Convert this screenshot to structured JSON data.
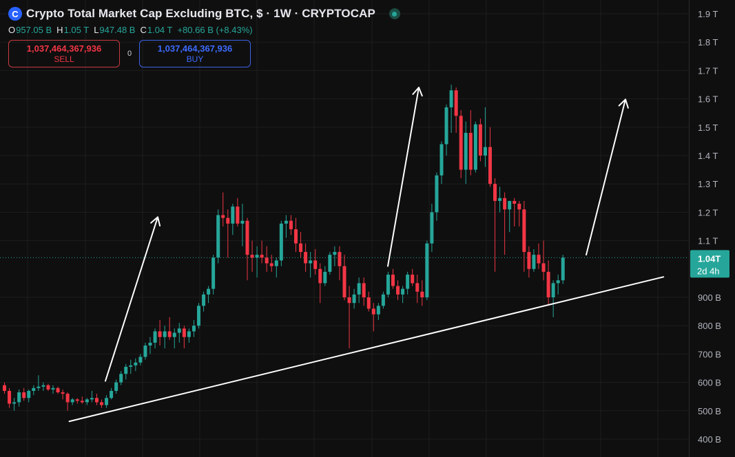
{
  "header": {
    "title": "Crypto Total Market Cap Excluding BTC, $ · 1W · CRYPTOCAP",
    "logo_icon": "coin-logo-icon",
    "status_icon": "market-open-dot-icon",
    "ohlc": {
      "open_label": "O",
      "open": "957.05 B",
      "high_label": "H",
      "high": "1.05 T",
      "low_label": "L",
      "low": "947.48 B",
      "close_label": "C",
      "close": "1.04 T",
      "change": "+80.66 B (+8.43%)"
    }
  },
  "trade": {
    "sell_price": "1,037,464,367,936",
    "sell_label": "SELL",
    "spread": "0",
    "buy_price": "1,037,464,367,936",
    "buy_label": "BUY"
  },
  "colors": {
    "background": "#0f0f0f",
    "up": "#26a69a",
    "down": "#f23645",
    "grid": "#1e1e1e",
    "annotation": "#ffffff"
  },
  "price_badge": {
    "price": "1.04T",
    "countdown": "2d 4h",
    "value": 1.04
  },
  "chart_data": {
    "type": "candlestick",
    "ylabels": [
      {
        "v": 1.9,
        "t": "1.9 T"
      },
      {
        "v": 1.8,
        "t": "1.8 T"
      },
      {
        "v": 1.7,
        "t": "1.7 T"
      },
      {
        "v": 1.6,
        "t": "1.6 T"
      },
      {
        "v": 1.5,
        "t": "1.5 T"
      },
      {
        "v": 1.4,
        "t": "1.4 T"
      },
      {
        "v": 1.3,
        "t": "1.3 T"
      },
      {
        "v": 1.2,
        "t": "1.2 T"
      },
      {
        "v": 1.1,
        "t": "1.1 T"
      },
      {
        "v": 0.9,
        "t": "900 B"
      },
      {
        "v": 0.8,
        "t": "800 B"
      },
      {
        "v": 0.7,
        "t": "700 B"
      },
      {
        "v": 0.6,
        "t": "600 B"
      },
      {
        "v": 0.5,
        "t": "500 B"
      },
      {
        "v": 0.4,
        "t": "400 B"
      }
    ],
    "ylim": [
      0.385,
      1.935
    ],
    "bars_in_view": 142,
    "candles": [
      [
        0.59,
        0.6,
        0.56,
        0.57
      ],
      [
        0.57,
        0.58,
        0.51,
        0.525
      ],
      [
        0.525,
        0.545,
        0.5,
        0.53
      ],
      [
        0.53,
        0.575,
        0.515,
        0.565
      ],
      [
        0.565,
        0.58,
        0.535,
        0.545
      ],
      [
        0.545,
        0.575,
        0.53,
        0.57
      ],
      [
        0.57,
        0.59,
        0.555,
        0.58
      ],
      [
        0.58,
        0.625,
        0.57,
        0.585
      ],
      [
        0.585,
        0.6,
        0.57,
        0.59
      ],
      [
        0.59,
        0.595,
        0.57,
        0.575
      ],
      [
        0.575,
        0.59,
        0.56,
        0.58
      ],
      [
        0.58,
        0.585,
        0.56,
        0.565
      ],
      [
        0.565,
        0.575,
        0.54,
        0.56
      ],
      [
        0.56,
        0.565,
        0.5,
        0.53
      ],
      [
        0.53,
        0.545,
        0.52,
        0.54
      ],
      [
        0.54,
        0.545,
        0.525,
        0.535
      ],
      [
        0.535,
        0.55,
        0.525,
        0.53
      ],
      [
        0.53,
        0.545,
        0.52,
        0.54
      ],
      [
        0.54,
        0.57,
        0.53,
        0.545
      ],
      [
        0.545,
        0.56,
        0.52,
        0.53
      ],
      [
        0.53,
        0.54,
        0.51,
        0.52
      ],
      [
        0.52,
        0.555,
        0.51,
        0.545
      ],
      [
        0.545,
        0.58,
        0.54,
        0.57
      ],
      [
        0.57,
        0.61,
        0.56,
        0.6
      ],
      [
        0.6,
        0.64,
        0.59,
        0.63
      ],
      [
        0.63,
        0.665,
        0.61,
        0.655
      ],
      [
        0.655,
        0.68,
        0.63,
        0.66
      ],
      [
        0.66,
        0.685,
        0.64,
        0.67
      ],
      [
        0.67,
        0.7,
        0.66,
        0.69
      ],
      [
        0.69,
        0.74,
        0.68,
        0.73
      ],
      [
        0.73,
        0.76,
        0.7,
        0.74
      ],
      [
        0.74,
        0.79,
        0.72,
        0.78
      ],
      [
        0.78,
        0.82,
        0.73,
        0.76
      ],
      [
        0.76,
        0.8,
        0.72,
        0.78
      ],
      [
        0.78,
        0.83,
        0.75,
        0.76
      ],
      [
        0.76,
        0.79,
        0.72,
        0.775
      ],
      [
        0.775,
        0.81,
        0.74,
        0.79
      ],
      [
        0.79,
        0.8,
        0.72,
        0.76
      ],
      [
        0.76,
        0.79,
        0.74,
        0.78
      ],
      [
        0.78,
        0.82,
        0.76,
        0.8
      ],
      [
        0.8,
        0.88,
        0.79,
        0.87
      ],
      [
        0.87,
        0.92,
        0.85,
        0.91
      ],
      [
        0.91,
        0.94,
        0.88,
        0.93
      ],
      [
        0.93,
        1.05,
        0.91,
        1.04
      ],
      [
        1.04,
        1.21,
        1.02,
        1.19
      ],
      [
        1.19,
        1.27,
        1.15,
        1.18
      ],
      [
        1.18,
        1.21,
        1.04,
        1.16
      ],
      [
        1.16,
        1.23,
        1.12,
        1.22
      ],
      [
        1.22,
        1.25,
        1.15,
        1.16
      ],
      [
        1.16,
        1.23,
        1.08,
        1.17
      ],
      [
        1.17,
        1.18,
        0.96,
        1.05
      ],
      [
        1.05,
        1.1,
        0.99,
        1.04
      ],
      [
        1.04,
        1.08,
        0.97,
        1.05
      ],
      [
        1.05,
        1.1,
        1.02,
        1.04
      ],
      [
        1.04,
        1.08,
        0.99,
        1.02
      ],
      [
        1.02,
        1.05,
        0.99,
        1.01
      ],
      [
        1.01,
        1.04,
        0.97,
        1.03
      ],
      [
        1.03,
        1.17,
        1.01,
        1.16
      ],
      [
        1.16,
        1.19,
        1.11,
        1.17
      ],
      [
        1.17,
        1.19,
        1.12,
        1.14
      ],
      [
        1.14,
        1.18,
        1.06,
        1.09
      ],
      [
        1.09,
        1.13,
        1.04,
        1.06
      ],
      [
        1.06,
        1.09,
        0.99,
        1.02
      ],
      [
        1.02,
        1.06,
        0.97,
        1.03
      ],
      [
        1.03,
        1.07,
        0.98,
        1.0
      ],
      [
        1.0,
        1.02,
        0.88,
        0.95
      ],
      [
        0.95,
        1.01,
        0.94,
        0.99
      ],
      [
        0.99,
        1.06,
        0.98,
        1.05
      ],
      [
        1.05,
        1.08,
        1.01,
        1.06
      ],
      [
        1.06,
        1.08,
        0.96,
        1.01
      ],
      [
        1.01,
        1.05,
        0.89,
        0.9
      ],
      [
        0.9,
        0.94,
        0.72,
        0.88
      ],
      [
        0.88,
        0.93,
        0.86,
        0.91
      ],
      [
        0.91,
        0.97,
        0.88,
        0.95
      ],
      [
        0.95,
        0.97,
        0.87,
        0.9
      ],
      [
        0.9,
        0.92,
        0.85,
        0.86
      ],
      [
        0.86,
        0.88,
        0.78,
        0.84
      ],
      [
        0.84,
        0.88,
        0.82,
        0.87
      ],
      [
        0.87,
        0.92,
        0.86,
        0.91
      ],
      [
        0.91,
        0.99,
        0.9,
        0.98
      ],
      [
        0.98,
        1.0,
        0.93,
        0.94
      ],
      [
        0.94,
        0.96,
        0.89,
        0.91
      ],
      [
        0.91,
        0.94,
        0.88,
        0.93
      ],
      [
        0.93,
        0.99,
        0.91,
        0.98
      ],
      [
        0.98,
        1.0,
        0.94,
        0.95
      ],
      [
        0.95,
        0.98,
        0.88,
        0.92
      ],
      [
        0.92,
        0.96,
        0.87,
        0.9
      ],
      [
        0.9,
        1.1,
        0.89,
        1.09
      ],
      [
        1.09,
        1.23,
        1.06,
        1.2
      ],
      [
        1.2,
        1.34,
        1.17,
        1.33
      ],
      [
        1.33,
        1.45,
        1.3,
        1.44
      ],
      [
        1.44,
        1.58,
        1.4,
        1.57
      ],
      [
        1.57,
        1.65,
        1.48,
        1.63
      ],
      [
        1.63,
        1.64,
        1.48,
        1.54
      ],
      [
        1.54,
        1.56,
        1.32,
        1.35
      ],
      [
        1.35,
        1.52,
        1.3,
        1.48
      ],
      [
        1.48,
        1.56,
        1.33,
        1.35
      ],
      [
        1.35,
        1.52,
        1.34,
        1.51
      ],
      [
        1.51,
        1.53,
        1.38,
        1.4
      ],
      [
        1.4,
        1.57,
        1.36,
        1.43
      ],
      [
        1.43,
        1.5,
        1.29,
        1.3
      ],
      [
        1.3,
        1.32,
        0.99,
        1.24
      ],
      [
        1.24,
        1.29,
        1.2,
        1.25
      ],
      [
        1.25,
        1.27,
        1.05,
        1.21
      ],
      [
        1.21,
        1.24,
        1.13,
        1.24
      ],
      [
        1.24,
        1.25,
        1.15,
        1.23
      ],
      [
        1.23,
        1.24,
        1.15,
        1.21
      ],
      [
        1.21,
        1.24,
        0.99,
        1.06
      ],
      [
        1.06,
        1.08,
        0.97,
        1.0
      ],
      [
        1.0,
        1.07,
        0.99,
        1.05
      ],
      [
        1.05,
        1.09,
        1.0,
        1.02
      ],
      [
        1.02,
        1.1,
        0.96,
        0.99
      ],
      [
        0.99,
        1.03,
        0.87,
        0.9
      ],
      [
        0.9,
        0.96,
        0.83,
        0.95
      ],
      [
        0.95,
        0.98,
        0.91,
        0.96
      ],
      [
        0.96,
        1.05,
        0.947,
        1.04
      ]
    ],
    "trendline": [
      [
        2,
        0.465
      ],
      [
        134,
        0.972
      ]
    ],
    "arrows": [
      [
        [
          21,
          0.605
        ],
        [
          33,
          1.183
        ]
      ],
      [
        [
          81,
          1.01
        ],
        [
          90,
          1.64
        ]
      ],
      [
        [
          123,
          1.05
        ],
        [
          131,
          1.598
        ]
      ]
    ]
  }
}
